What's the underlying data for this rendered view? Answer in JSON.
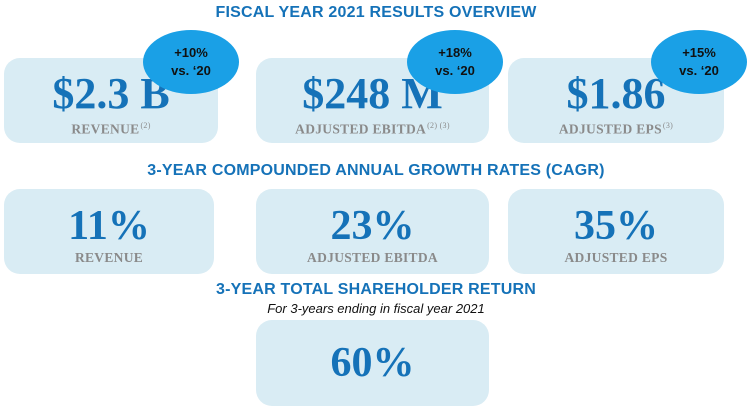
{
  "headings": {
    "fiscal": "FISCAL YEAR 2021 RESULTS OVERVIEW",
    "cagr": "3-YEAR COMPOUNDED ANNUAL GROWTH RATES (CAGR)",
    "tsr": "3-YEAR TOTAL SHAREHOLDER RETURN",
    "tsr_sub": "For 3-years ending in fiscal year 2021"
  },
  "fiscal_cards": [
    {
      "value": "$2.3 B",
      "label": "REVENUE",
      "notes": "(2)",
      "change": "+10%",
      "vs": "vs. ‘20"
    },
    {
      "value": "$248 M",
      "label": "ADJUSTED EBITDA",
      "notes": "(2) (3)",
      "change": "+18%",
      "vs": "vs. ‘20"
    },
    {
      "value": "$1.86",
      "label": "ADJUSTED EPS",
      "notes": "(3)",
      "change": "+15%",
      "vs": "vs. ‘20"
    }
  ],
  "cagr_cards": [
    {
      "value": "11%",
      "label": "REVENUE"
    },
    {
      "value": "23%",
      "label": "ADJUSTED EBITDA"
    },
    {
      "value": "35%",
      "label": "ADJUSTED EPS"
    }
  ],
  "tsr_card": {
    "value": "60%"
  },
  "colors": {
    "accent": "#1572b8",
    "card_bg": "#d9ecf4",
    "bubble": "#1aa0e6",
    "label": "#8a8a8a"
  }
}
